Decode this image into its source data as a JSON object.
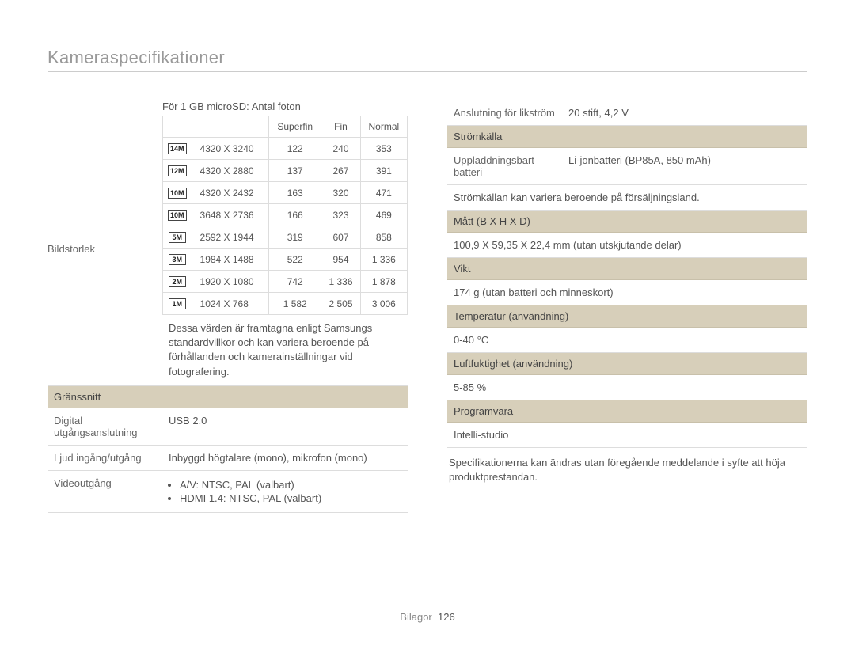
{
  "title": "Kameraspecifikationer",
  "footer": {
    "label": "Bilagor",
    "page": "126"
  },
  "left": {
    "image_size_label": "Bildstorlek",
    "table_caption": "För 1 GB microSD: Antal foton",
    "headers": [
      "",
      "",
      "Superfin",
      "Fin",
      "Normal"
    ],
    "rows": [
      {
        "icon": "14M",
        "res": "4320 X 3240",
        "c1": "122",
        "c2": "240",
        "c3": "353"
      },
      {
        "icon": "12M",
        "res": "4320 X 2880",
        "c1": "137",
        "c2": "267",
        "c3": "391"
      },
      {
        "icon": "10M",
        "res": "4320 X 2432",
        "c1": "163",
        "c2": "320",
        "c3": "471"
      },
      {
        "icon": "10M",
        "res": "3648 X 2736",
        "c1": "166",
        "c2": "323",
        "c3": "469"
      },
      {
        "icon": "5M",
        "res": "2592 X 1944",
        "c1": "319",
        "c2": "607",
        "c3": "858"
      },
      {
        "icon": "3M",
        "res": "1984 X 1488",
        "c1": "522",
        "c2": "954",
        "c3": "1 336"
      },
      {
        "icon": "2M",
        "res": "1920 X 1080",
        "c1": "742",
        "c2": "1 336",
        "c3": "1 878"
      },
      {
        "icon": "1M",
        "res": "1024 X 768",
        "c1": "1 582",
        "c2": "2 505",
        "c3": "3 006"
      }
    ],
    "disclaimer": "Dessa värden är framtagna enligt Samsungs standardvillkor och kan variera beroende på förhållanden och kamerainställningar vid fotografering.",
    "interface_header": "Gränssnitt",
    "rows2": [
      {
        "k": "Digital utgångsanslutning",
        "v": "USB 2.0"
      },
      {
        "k": "Ljud ingång/utgång",
        "v": "Inbyggd högtalare (mono), mikrofon (mono)"
      }
    ],
    "video_label": "Videoutgång",
    "video_bullets": [
      "A/V: NTSC, PAL (valbart)",
      "HDMI 1.4: NTSC, PAL (valbart)"
    ]
  },
  "right": {
    "dc_row": {
      "k": "Anslutning för likström",
      "v": "20 stift, 4,2 V"
    },
    "power_header": "Strömkälla",
    "battery_row": {
      "k": "Uppladdningsbart batteri",
      "v": "Li-jonbatteri (BP85A, 850 mAh)"
    },
    "power_note": "Strömkällan kan variera beroende på försäljningsland.",
    "dim_header": "Mått (B X H X D)",
    "dim_value": "100,9 X 59,35 X 22,4 mm (utan utskjutande delar)",
    "weight_header": "Vikt",
    "weight_value": "174 g (utan batteri och minneskort)",
    "temp_header": "Temperatur (användning)",
    "temp_value": "0-40 °C",
    "hum_header": "Luftfuktighet (användning)",
    "hum_value": "5-85 %",
    "sw_header": "Programvara",
    "sw_value": "Intelli-studio",
    "footnote": "Specifikationerna kan ändras utan föregående meddelande i syfte att höja produktprestandan."
  }
}
